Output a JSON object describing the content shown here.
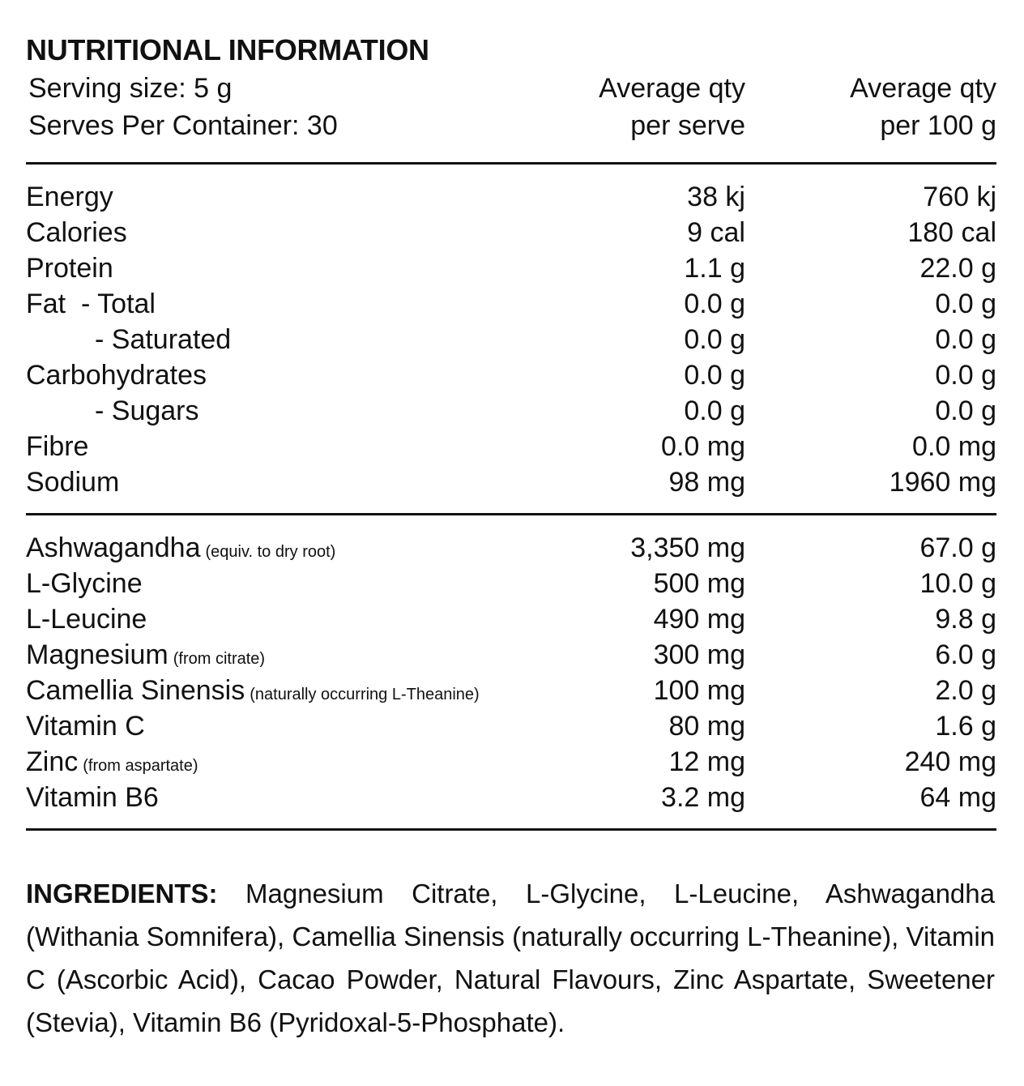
{
  "title": "NUTRITIONAL INFORMATION",
  "header": {
    "serving_size": "Serving size: 5 g",
    "serves_per_container": "Serves Per Container: 30",
    "col_serve_line1": "Average qty",
    "col_serve_line2": "per serve",
    "col_100g_line1": "Average qty",
    "col_100g_line2": "per 100 g"
  },
  "nutrients": [
    {
      "name": "Energy",
      "per_serve": "38 kj",
      "per_100g": "760 kj"
    },
    {
      "name": "Calories",
      "per_serve": "9 cal",
      "per_100g": "180 cal"
    },
    {
      "name": "Protein",
      "per_serve": "1.1 g",
      "per_100g": "22.0 g"
    },
    {
      "name": "Fat  - Total",
      "per_serve": "0.0 g",
      "per_100g": "0.0 g"
    },
    {
      "name": "- Saturated",
      "per_serve": "0.0 g",
      "per_100g": "0.0 g"
    },
    {
      "name": "Carbohydrates",
      "per_serve": "0.0 g",
      "per_100g": "0.0 g"
    },
    {
      "name": "- Sugars",
      "per_serve": "0.0 g",
      "per_100g": "0.0 g"
    },
    {
      "name": "Fibre",
      "per_serve": "0.0 mg",
      "per_100g": "0.0 mg"
    },
    {
      "name": "Sodium",
      "per_serve": "98 mg",
      "per_100g": "1960 mg"
    }
  ],
  "actives": [
    {
      "name": "Ashwagandha",
      "note": "(equiv. to dry root)",
      "per_serve": "3,350 mg",
      "per_100g": "67.0 g"
    },
    {
      "name": "L-Glycine",
      "note": "",
      "per_serve": "500 mg",
      "per_100g": "10.0 g"
    },
    {
      "name": "L-Leucine",
      "note": "",
      "per_serve": "490 mg",
      "per_100g": "9.8 g"
    },
    {
      "name": "Magnesium",
      "note": "(from citrate)",
      "per_serve": "300 mg",
      "per_100g": "6.0 g"
    },
    {
      "name": "Camellia Sinensis",
      "note": "(naturally occurring L-Theanine)",
      "per_serve": "100 mg",
      "per_100g": "2.0 g"
    },
    {
      "name": "Vitamin C",
      "note": "",
      "per_serve": "80 mg",
      "per_100g": "1.6 g"
    },
    {
      "name": "Zinc",
      "note": "(from aspartate)",
      "per_serve": "12 mg",
      "per_100g": "240 mg"
    },
    {
      "name": "Vitamin B6",
      "note": "",
      "per_serve": "3.2 mg",
      "per_100g": "64 mg"
    }
  ],
  "ingredients": {
    "label": "INGREDIENTS:",
    "text": "Magnesium Citrate, L-Glycine, L-Leucine, Ashwagandha (Withania Somnifera), Camellia Sinensis (naturally occurring L-Theanine), Vitamin C (Ascorbic Acid), Cacao Powder, Natural Flavours, Zinc Aspartate, Sweetener (Stevia), Vitamin B6 (Pyridoxal-5-Phosphate)."
  }
}
